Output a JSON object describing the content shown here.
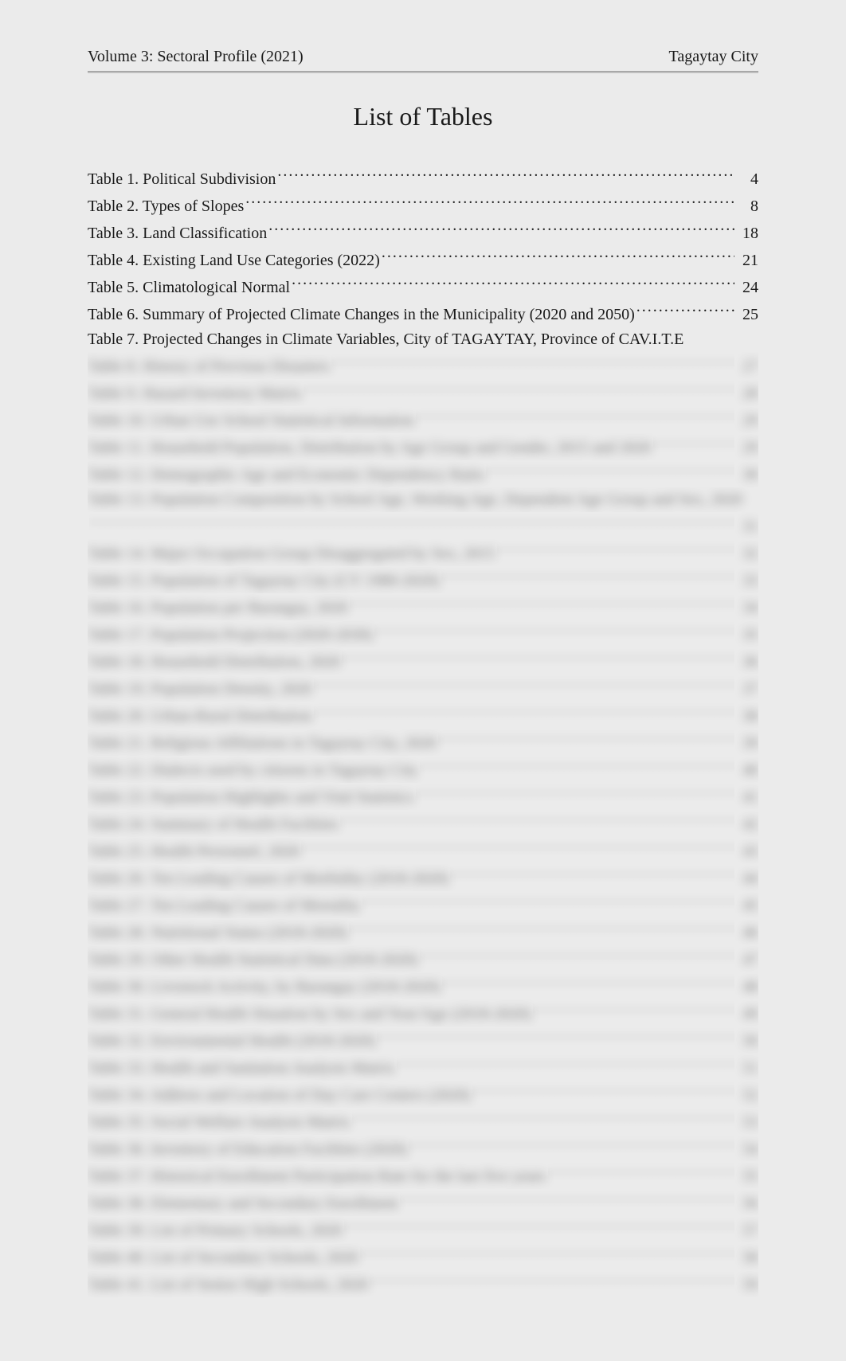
{
  "header": {
    "left": "Volume 3: Sectoral Profile (2021)",
    "right": "Tagaytay City"
  },
  "title": "List of Tables",
  "toc": [
    {
      "label": "Table 1. Political Subdivision",
      "page": "4",
      "blur": false
    },
    {
      "label": "Table 2. Types of Slopes",
      "page": "8",
      "blur": false
    },
    {
      "label": "Table 3. Land Classification",
      "page": "18",
      "blur": false
    },
    {
      "label": "Table 4. Existing Land Use Categories (2022)",
      "page": "21",
      "blur": false
    },
    {
      "label": "Table 5. Climatological Normal",
      "page": "24",
      "blur": false
    },
    {
      "label": "Table 6. Summary of Projected Climate Changes in the Municipality (2020 and 2050)",
      "page": "25",
      "blur": false
    },
    {
      "label": "Table 7. Projected Changes in Climate Variables, City of TAGAYTAY, Province of CAV.I.T.E",
      "page": "",
      "blur": false
    },
    {
      "label": "Table 8. History of Previous Disasters",
      "page": "27",
      "blur": true
    },
    {
      "label": "Table 9. Hazard Inventory Matrix",
      "page": "28",
      "blur": true
    },
    {
      "label": "Table 10. Urban Use School Statistical Information",
      "page": "29",
      "blur": true
    },
    {
      "label": "Table 11. Household Population, Distribution by Age Group and Gender, 2015 and 2020",
      "page": "29",
      "blur": true
    },
    {
      "label": "Table 12. Demographic Age and Economic Dependency Ratio",
      "page": "30",
      "blur": true
    },
    {
      "label": "Table 13. Population Composition by School Age, Working Age, Dependent Age Group and Sex, 2020",
      "page": "",
      "blur": true
    },
    {
      "label": "",
      "page": "31",
      "blur": true
    },
    {
      "label": "Table 14. Major Occupation Group Disaggregated by Sex, 2015",
      "page": "32",
      "blur": true
    },
    {
      "label": "Table 15. Population of Tagaytay City (CY 1980-2020)",
      "page": "33",
      "blur": true
    },
    {
      "label": "Table 16. Population per Barangay, 2020",
      "page": "34",
      "blur": true
    },
    {
      "label": "Table 17. Population Projection (2020-2030)",
      "page": "35",
      "blur": true
    },
    {
      "label": "Table 18. Household Distribution, 2020",
      "page": "36",
      "blur": true
    },
    {
      "label": "Table 19. Population Density, 2020",
      "page": "37",
      "blur": true
    },
    {
      "label": "Table 20. Urban-Rural Distribution",
      "page": "38",
      "blur": true
    },
    {
      "label": "Table 21. Religious Affiliations in Tagaytay City, 2020",
      "page": "39",
      "blur": true
    },
    {
      "label": "Table 22. Dialects used by citizens in Tagaytay City",
      "page": "40",
      "blur": true
    },
    {
      "label": "Table 23. Population Highlights and Vital Statistics",
      "page": "41",
      "blur": true
    },
    {
      "label": "Table 24. Summary of Health Facilities",
      "page": "42",
      "blur": true
    },
    {
      "label": "Table 25. Health Personnel, 2020",
      "page": "43",
      "blur": true
    },
    {
      "label": "Table 26. Ten Leading Causes of Morbidity (2018-2020)",
      "page": "44",
      "blur": true
    },
    {
      "label": "Table 27. Ten Leading Causes of Mortality",
      "page": "45",
      "blur": true
    },
    {
      "label": "Table 28. Nutritional Status (2018-2020)",
      "page": "46",
      "blur": true
    },
    {
      "label": "Table 29. Other Health Statistical Data (2018-2020)",
      "page": "47",
      "blur": true
    },
    {
      "label": "Table 30. Livestock Activity, by Barangay (2018-2020)",
      "page": "48",
      "blur": true
    },
    {
      "label": "Table 31. General Health Situation by Sex and Year/Age (2018-2020)",
      "page": "49",
      "blur": true
    },
    {
      "label": "Table 32. Environmental Health (2018-2020)",
      "page": "50",
      "blur": true
    },
    {
      "label": "Table 33. Health and Sanitation Analysis Matrix",
      "page": "51",
      "blur": true
    },
    {
      "label": "Table 34. Address and Location of Day Care Centers (2020)",
      "page": "52",
      "blur": true
    },
    {
      "label": "Table 35. Social Welfare Analysis Matrix",
      "page": "53",
      "blur": true
    },
    {
      "label": "Table 36. Inventory of Education Facilities (2020)",
      "page": "54",
      "blur": true
    },
    {
      "label": "Table 37. Historical Enrollment Participation Rate for the last five years",
      "page": "55",
      "blur": true
    },
    {
      "label": "Table 38. Elementary and Secondary Enrollment",
      "page": "56",
      "blur": true
    },
    {
      "label": "Table 39. List of Primary Schools, 2020",
      "page": "57",
      "blur": true
    },
    {
      "label": "Table 40. List of Secondary Schools, 2020",
      "page": "58",
      "blur": true
    },
    {
      "label": "Table 41. List of Senior High Schools, 2020",
      "page": "59",
      "blur": true
    }
  ]
}
